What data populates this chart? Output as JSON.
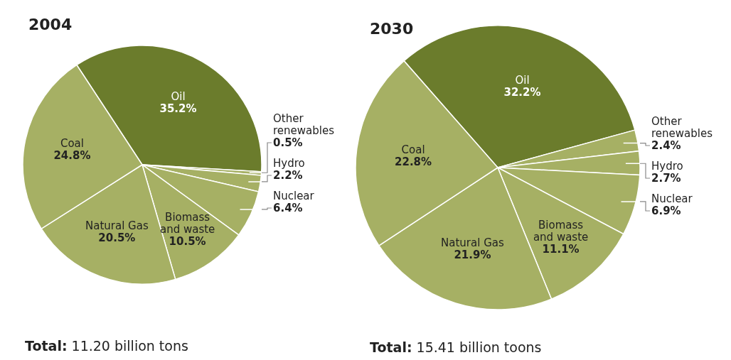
{
  "chart_data": [
    {
      "type": "pie",
      "title": "2004",
      "categories": [
        "Oil",
        "Other renewables",
        "Hydro",
        "Nuclear",
        "Biomass and waste",
        "Natural Gas",
        "Coal"
      ],
      "values": [
        35.2,
        0.5,
        2.2,
        6.4,
        10.5,
        20.5,
        24.8
      ],
      "value_labels": [
        "35.2%",
        "0.5%",
        "2.2%",
        "6.4%",
        "10.5%",
        "20.5%",
        "24.8%"
      ],
      "colors": [
        "#6b7c2c",
        "#a6b064",
        "#a6b064",
        "#a6b064",
        "#a6b064",
        "#a6b064",
        "#a6b064"
      ],
      "annotations": [
        "Total: 11.20 billion tons"
      ]
    },
    {
      "type": "pie",
      "title": "2030",
      "categories": [
        "Oil",
        "Other renewables",
        "Hydro",
        "Nuclear",
        "Biomass and waste",
        "Natural Gas",
        "Coal"
      ],
      "values": [
        32.2,
        2.4,
        2.7,
        6.9,
        11.1,
        21.9,
        22.8
      ],
      "value_labels": [
        "32.2%",
        "2.4%",
        "2.7%",
        "6.9%",
        "11.1%",
        "21.9%",
        "22.8%"
      ],
      "colors": [
        "#6b7c2c",
        "#a6b064",
        "#a6b064",
        "#a6b064",
        "#a6b064",
        "#a6b064",
        "#a6b064"
      ],
      "annotations": [
        "Total: 15.41 billion toons"
      ]
    }
  ]
}
